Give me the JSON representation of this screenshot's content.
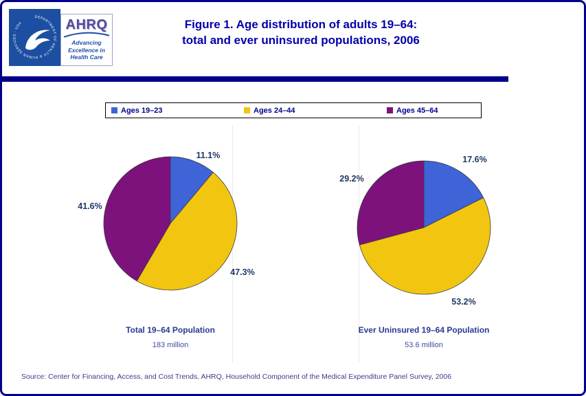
{
  "theme": {
    "border_navy": "#00008B",
    "title_blue": "#0000AA",
    "label_navy": "#1F3864",
    "caption_navy": "#2B3990",
    "subtitle_navy": "#3F4BA0",
    "source_navy": "#3C3C8C",
    "legend_navy": "#00008B"
  },
  "header": {
    "title_line1": "Figure 1. Age distribution of adults 19–64:",
    "title_line2": "total and ever uninsured populations, 2006",
    "hhs_logo_circle_text": "DEPARTMENT OF HEALTH & HUMAN SERVICES · USA",
    "ahrq_acronym": "AHRQ",
    "ahrq_tagline": [
      "Advancing",
      "Excellence in",
      "Health Care"
    ]
  },
  "legend": {
    "items": [
      {
        "label": "Ages 19–23",
        "color": "#3E64D8"
      },
      {
        "label": "Ages 24–44",
        "color": "#F2C511"
      },
      {
        "label": "Ages 45–64",
        "color": "#7D127D"
      }
    ]
  },
  "chart_data": [
    {
      "type": "pie",
      "title": "Total 19–64 Population",
      "subtitle": "183 million",
      "start_angle_deg": 0,
      "direction": "clockwise",
      "slices": [
        {
          "label": "Ages 19–23",
          "value_pct": 11.1,
          "display": "11.1%",
          "color": "#3E64D8"
        },
        {
          "label": "Ages 24–44",
          "value_pct": 47.3,
          "display": "47.3%",
          "color": "#F2C511"
        },
        {
          "label": "Ages 45–64",
          "value_pct": 41.6,
          "display": "41.6%",
          "color": "#7D127D"
        }
      ]
    },
    {
      "type": "pie",
      "title": "Ever Uninsured 19–64 Population",
      "subtitle": "53.6 million",
      "start_angle_deg": 0,
      "direction": "clockwise",
      "slices": [
        {
          "label": "Ages 19–23",
          "value_pct": 17.6,
          "display": "17.6%",
          "color": "#3E64D8"
        },
        {
          "label": "Ages 24–44",
          "value_pct": 53.2,
          "display": "53.2%",
          "color": "#F2C511"
        },
        {
          "label": "Ages 45–64",
          "value_pct": 29.2,
          "display": "29.2%",
          "color": "#7D127D"
        }
      ]
    }
  ],
  "source": "Source: Center for Financing, Access, and Cost Trends, AHRQ, Household Component of the Medical Expenditure Panel Survey, 2006"
}
